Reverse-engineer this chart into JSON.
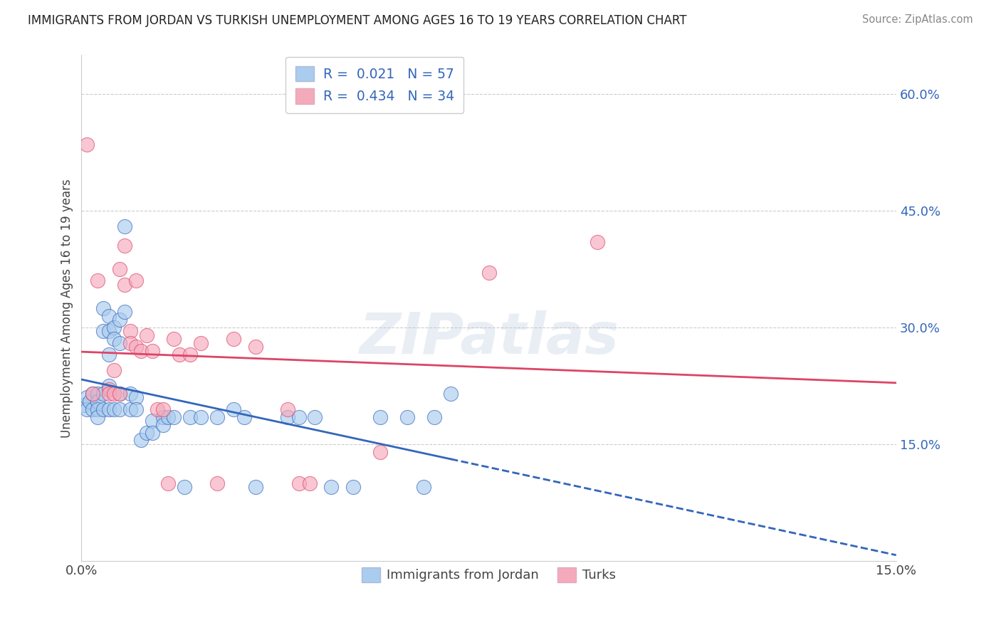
{
  "title": "IMMIGRANTS FROM JORDAN VS TURKISH UNEMPLOYMENT AMONG AGES 16 TO 19 YEARS CORRELATION CHART",
  "source": "Source: ZipAtlas.com",
  "ylabel": "Unemployment Among Ages 16 to 19 years",
  "xlim": [
    0.0,
    0.15
  ],
  "ylim": [
    0.0,
    0.65
  ],
  "color_jordan": "#aaccee",
  "color_turks": "#f5aabc",
  "color_jordan_line": "#3366bb",
  "color_turks_line": "#dd4466",
  "watermark": "ZIPatlas",
  "jordan_r": "0.021",
  "jordan_n": "57",
  "turks_r": "0.434",
  "turks_n": "34",
  "legend1_label": "Immigrants from Jordan",
  "legend2_label": "Turks",
  "jordan_x": [
    0.0005,
    0.001,
    0.001,
    0.0015,
    0.002,
    0.002,
    0.003,
    0.003,
    0.003,
    0.003,
    0.004,
    0.004,
    0.004,
    0.004,
    0.005,
    0.005,
    0.005,
    0.005,
    0.005,
    0.006,
    0.006,
    0.006,
    0.007,
    0.007,
    0.007,
    0.007,
    0.008,
    0.008,
    0.009,
    0.009,
    0.01,
    0.01,
    0.011,
    0.012,
    0.013,
    0.013,
    0.015,
    0.015,
    0.016,
    0.017,
    0.019,
    0.02,
    0.022,
    0.025,
    0.028,
    0.03,
    0.032,
    0.038,
    0.04,
    0.043,
    0.046,
    0.05,
    0.055,
    0.06,
    0.063,
    0.065,
    0.068
  ],
  "jordan_y": [
    0.2,
    0.21,
    0.195,
    0.205,
    0.215,
    0.195,
    0.215,
    0.205,
    0.195,
    0.185,
    0.325,
    0.295,
    0.215,
    0.195,
    0.315,
    0.295,
    0.265,
    0.225,
    0.195,
    0.3,
    0.285,
    0.195,
    0.31,
    0.28,
    0.215,
    0.195,
    0.43,
    0.32,
    0.215,
    0.195,
    0.21,
    0.195,
    0.155,
    0.165,
    0.18,
    0.165,
    0.185,
    0.175,
    0.185,
    0.185,
    0.095,
    0.185,
    0.185,
    0.185,
    0.195,
    0.185,
    0.095,
    0.185,
    0.185,
    0.185,
    0.095,
    0.095,
    0.185,
    0.185,
    0.095,
    0.185,
    0.215
  ],
  "turks_x": [
    0.001,
    0.002,
    0.003,
    0.005,
    0.005,
    0.006,
    0.006,
    0.007,
    0.007,
    0.008,
    0.008,
    0.009,
    0.009,
    0.01,
    0.01,
    0.011,
    0.012,
    0.013,
    0.014,
    0.015,
    0.016,
    0.017,
    0.018,
    0.02,
    0.022,
    0.025,
    0.028,
    0.032,
    0.038,
    0.04,
    0.042,
    0.055,
    0.075,
    0.095
  ],
  "turks_y": [
    0.535,
    0.215,
    0.36,
    0.22,
    0.215,
    0.245,
    0.215,
    0.375,
    0.215,
    0.405,
    0.355,
    0.295,
    0.28,
    0.36,
    0.275,
    0.27,
    0.29,
    0.27,
    0.195,
    0.195,
    0.1,
    0.285,
    0.265,
    0.265,
    0.28,
    0.1,
    0.285,
    0.275,
    0.195,
    0.1,
    0.1,
    0.14,
    0.37,
    0.41
  ]
}
